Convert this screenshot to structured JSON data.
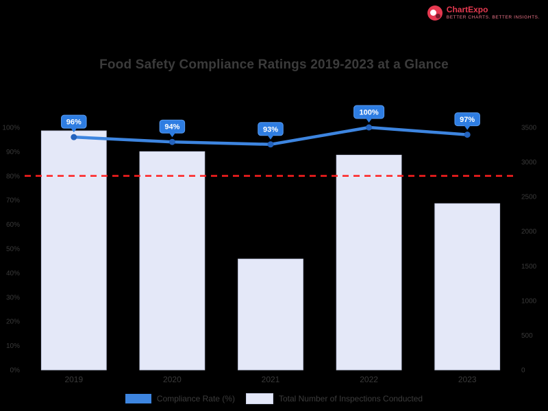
{
  "brand": {
    "name": "ChartExpo",
    "tagline": "BETTER CHARTS. BETTER INSIGHTS.",
    "color": "#e63950"
  },
  "chart_data": {
    "type": "bar",
    "title": "Food Safety Compliance Ratings 2019-2023 at a Glance",
    "categories": [
      "2019",
      "2020",
      "2021",
      "2022",
      "2023"
    ],
    "series": [
      {
        "name": "Compliance Rate (%)",
        "type": "line",
        "axis": "left",
        "color": "#3d85e0",
        "values": [
          96,
          94,
          93,
          100,
          97
        ],
        "labels": [
          "96%",
          "94%",
          "93%",
          "100%",
          "97%"
        ]
      },
      {
        "name": "Total Number of Inspections Conducted",
        "type": "bar",
        "axis": "right",
        "color": "#e4e8f8",
        "values": [
          3450,
          3150,
          1600,
          3100,
          2400
        ]
      }
    ],
    "left_axis": {
      "min": 0,
      "max": 100,
      "step": 10,
      "suffix": "%",
      "tick_labels": [
        "100%",
        "90%",
        "80%",
        "70%",
        "60%",
        "50%",
        "40%",
        "30%",
        "20%",
        "10%",
        "0%"
      ]
    },
    "right_axis": {
      "min": 0,
      "max": 3500,
      "step": 500,
      "tick_labels": [
        "3500",
        "3000",
        "2500",
        "2000",
        "1500",
        "1000",
        "500",
        "0"
      ]
    },
    "threshold": {
      "value": 80,
      "color": "#ff1f1f",
      "style": "dashed",
      "axis": "left"
    },
    "legend": [
      {
        "label": "Compliance Rate (%)",
        "color": "#3d85e0"
      },
      {
        "label": "Total Number of Inspections Conducted",
        "color": "#e4e8f8",
        "border": "#c9cfe6"
      }
    ],
    "grid": false,
    "legend_position": "bottom"
  }
}
